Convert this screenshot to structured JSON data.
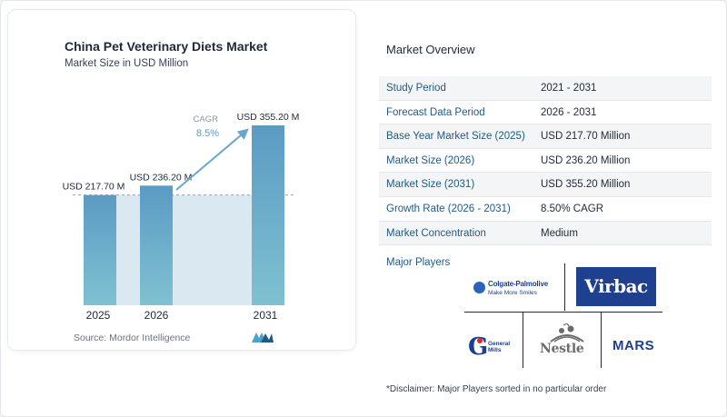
{
  "chart_data": {
    "type": "bar",
    "title": "China Pet Veterinary Diets Market",
    "subtitle": "Market Size in USD Million",
    "categories": [
      "2025",
      "2026",
      "2031"
    ],
    "values": [
      217.7,
      236.2,
      355.2
    ],
    "data_labels": [
      "USD 217.70 M",
      "USD 236.20 M",
      "USD 355.20 M"
    ],
    "cagr_label": "CAGR",
    "cagr_value": "8.5%",
    "baseline_reference": 217.7,
    "ylim": [
      0,
      355.2
    ],
    "grid": false,
    "legend": "none",
    "colors": {
      "bar_top": "#5b9bc4",
      "bar_bottom": "#7fc1d1",
      "arrow": "#6aa6c8",
      "band": "#d9e8f1",
      "reference_line": "#9aa3ab"
    }
  },
  "source": "Source:  Mordor Intelligence",
  "overview": {
    "title": "Market Overview",
    "rows": [
      {
        "label": "Study Period",
        "value": "2021 - 2031"
      },
      {
        "label": "Forecast Data Period",
        "value": "2026 - 2031"
      },
      {
        "label": "Base Year Market Size (2025)",
        "value": "USD 217.70 Million"
      },
      {
        "label": "Market Size (2026)",
        "value": "USD 236.20 Million"
      },
      {
        "label": "Market Size (2031)",
        "value": "USD 355.20 Million"
      },
      {
        "label": "Growth Rate (2026 - 2031)",
        "value": "8.50% CAGR"
      },
      {
        "label": "Market Concentration",
        "value": "Medium"
      }
    ]
  },
  "major_players": {
    "title": "Major Players",
    "logos": {
      "colgate_top": "Colgate-Palmolive",
      "colgate_bottom": "Make More Smiles",
      "virbac": "Virbac",
      "gm_line1": "General",
      "gm_line2": "Mills",
      "nestle": "Nestle",
      "mars": "MARS"
    }
  },
  "disclaimer": "*Disclaimer: Major Players sorted in no particular order"
}
